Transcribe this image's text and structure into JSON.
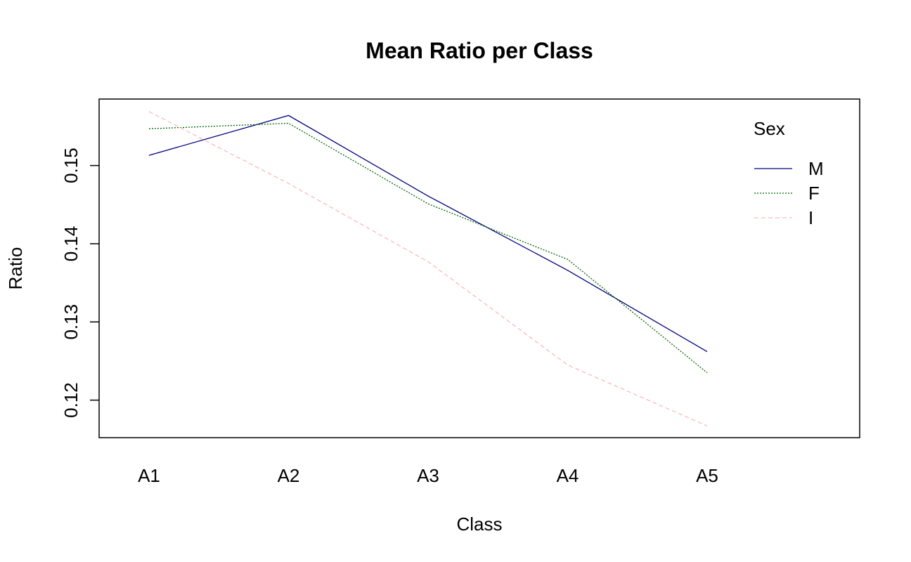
{
  "chart_data": {
    "type": "line",
    "title": "Mean Ratio per Class",
    "xlabel": "Class",
    "ylabel": "Ratio",
    "categories": [
      "A1",
      "A2",
      "A3",
      "A4",
      "A5"
    ],
    "ylim": [
      0.1152,
      0.1585
    ],
    "yticks": [
      0.12,
      0.13,
      0.14,
      0.15
    ],
    "ytick_labels": [
      "0.12",
      "0.13",
      "0.14",
      "0.15"
    ],
    "grid": false,
    "legend": {
      "title": "Sex",
      "position": "top-right"
    },
    "series": [
      {
        "name": "M",
        "color": "#000080",
        "dash": "solid",
        "values": [
          0.1513,
          0.1564,
          0.1461,
          0.1366,
          0.1262
        ]
      },
      {
        "name": "F",
        "color": "#006400",
        "dash": "dotted",
        "values": [
          0.1547,
          0.1554,
          0.1451,
          0.138,
          0.1235
        ]
      },
      {
        "name": "I",
        "color": "#ffb6c1",
        "dash": "dashed",
        "values": [
          0.1569,
          0.1477,
          0.1377,
          0.1245,
          0.1167
        ]
      }
    ]
  }
}
